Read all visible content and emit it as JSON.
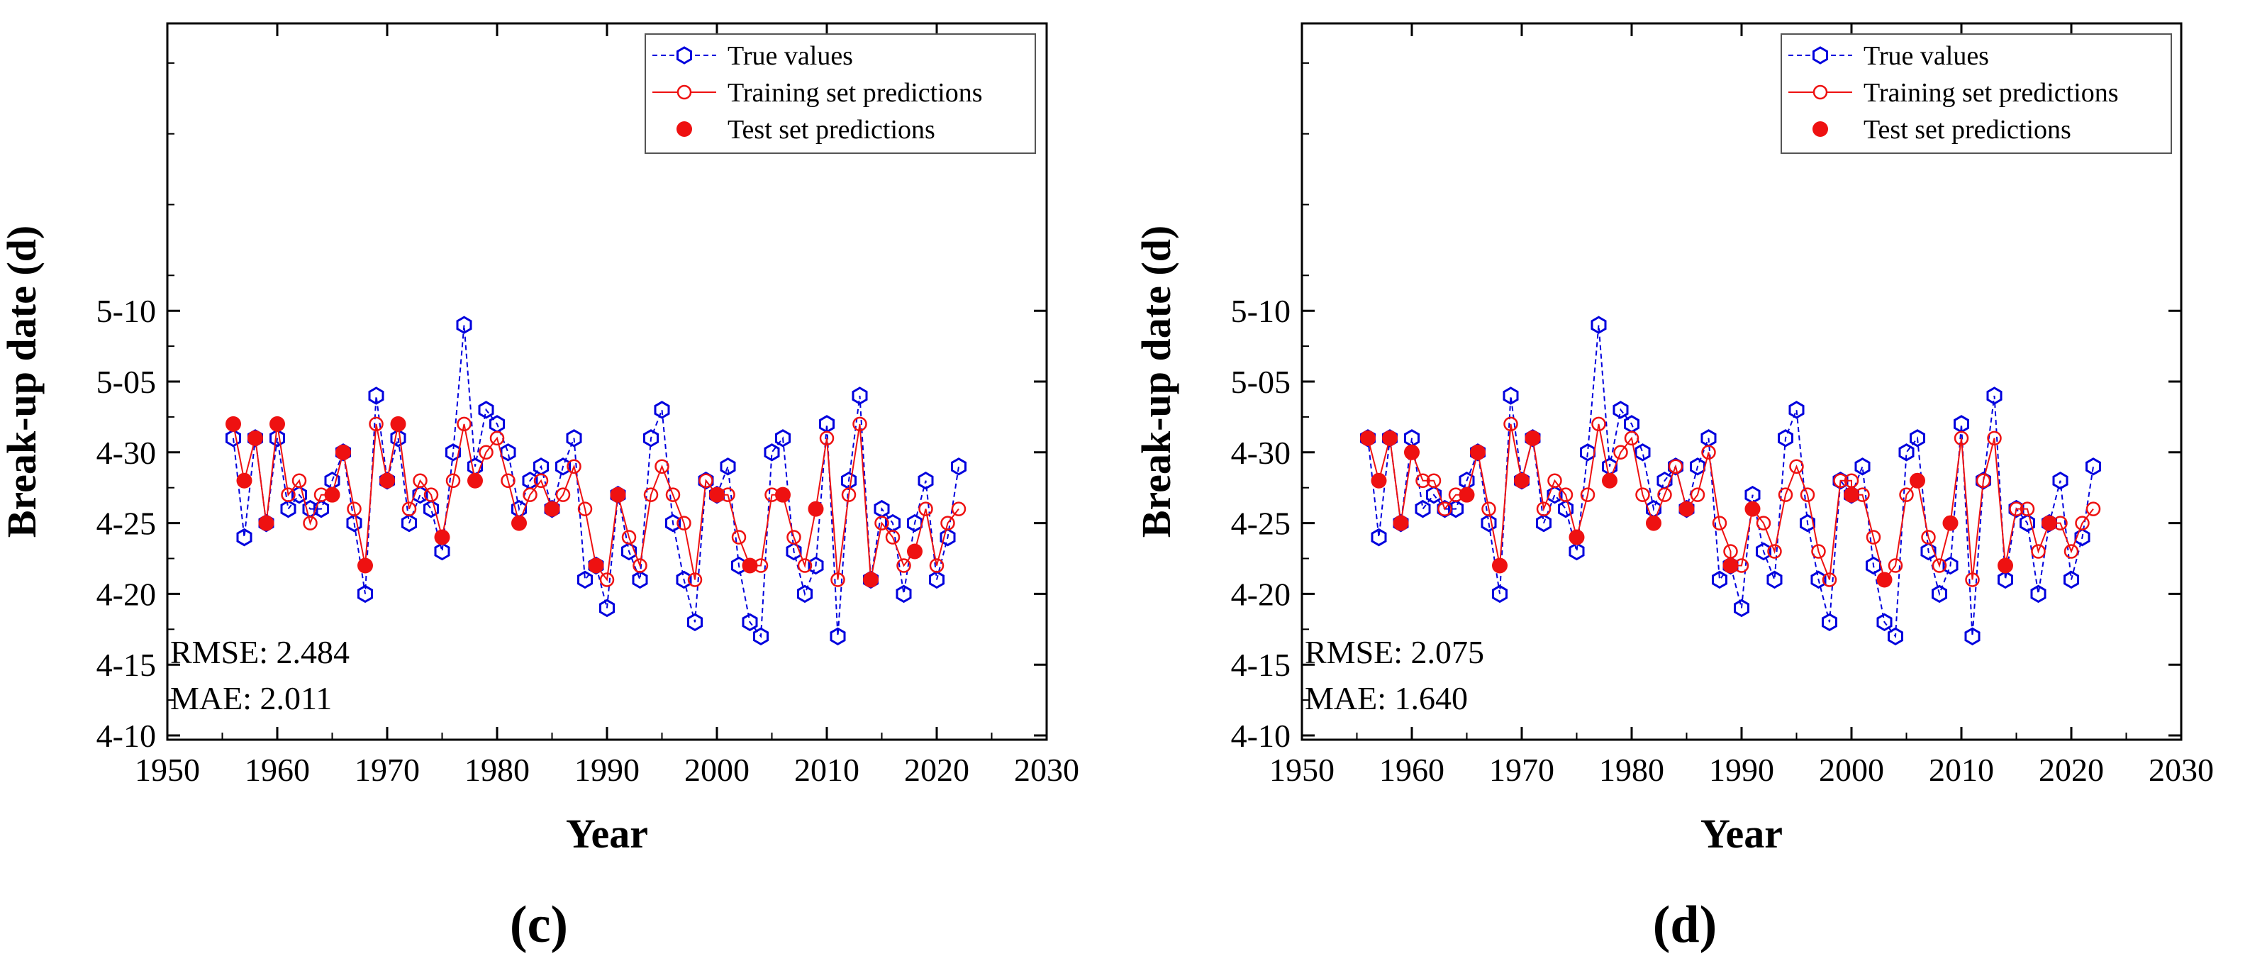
{
  "colors": {
    "true": "#0000dd",
    "train": "#ee1111",
    "test": "#ee1111",
    "axis": "#000000"
  },
  "chart_data": [
    {
      "type": "line",
      "panel": "(c)",
      "xlabel": "Year",
      "ylabel": "Break-up date (d)",
      "xlim": [
        1950,
        2030
      ],
      "ylim": [
        -20,
        30
      ],
      "x_ticks": [
        1950,
        1960,
        1970,
        1980,
        1990,
        2000,
        2010,
        2020,
        2030
      ],
      "y_ticks": [
        {
          "value": -20,
          "label": "4-10"
        },
        {
          "value": -15,
          "label": "4-15"
        },
        {
          "value": -10,
          "label": "4-20"
        },
        {
          "value": -5,
          "label": "4-25"
        },
        {
          "value": 0,
          "label": "4-30"
        },
        {
          "value": 5,
          "label": "5-05"
        },
        {
          "value": 10,
          "label": "5-10"
        }
      ],
      "legend": [
        "True values",
        "Training set predictions",
        "Test set predictions"
      ],
      "legend_position": "top-right",
      "metrics": [
        "RMSE: 2.484",
        "MAE: 2.011"
      ],
      "true_values": [
        [
          1956,
          1
        ],
        [
          1957,
          -6
        ],
        [
          1958,
          1
        ],
        [
          1959,
          -5
        ],
        [
          1960,
          1
        ],
        [
          1961,
          -4
        ],
        [
          1962,
          -3
        ],
        [
          1963,
          -4
        ],
        [
          1964,
          -4
        ],
        [
          1965,
          -2
        ],
        [
          1966,
          0
        ],
        [
          1967,
          -5
        ],
        [
          1968,
          -10
        ],
        [
          1969,
          4
        ],
        [
          1970,
          -2
        ],
        [
          1971,
          1
        ],
        [
          1972,
          -5
        ],
        [
          1973,
          -3
        ],
        [
          1974,
          -4
        ],
        [
          1975,
          -7
        ],
        [
          1976,
          0
        ],
        [
          1977,
          9
        ],
        [
          1978,
          -1
        ],
        [
          1979,
          3
        ],
        [
          1980,
          2
        ],
        [
          1981,
          0
        ],
        [
          1982,
          -4
        ],
        [
          1983,
          -2
        ],
        [
          1984,
          -1
        ],
        [
          1985,
          -4
        ],
        [
          1986,
          -1
        ],
        [
          1987,
          1
        ],
        [
          1988,
          -9
        ],
        [
          1989,
          -8
        ],
        [
          1990,
          -11
        ],
        [
          1991,
          -3
        ],
        [
          1992,
          -7
        ],
        [
          1993,
          -9
        ],
        [
          1994,
          1
        ],
        [
          1995,
          3
        ],
        [
          1996,
          -5
        ],
        [
          1997,
          -9
        ],
        [
          1998,
          -12
        ],
        [
          1999,
          -2
        ],
        [
          2000,
          -3
        ],
        [
          2001,
          -1
        ],
        [
          2002,
          -8
        ],
        [
          2003,
          -12
        ],
        [
          2004,
          -13
        ],
        [
          2005,
          0
        ],
        [
          2006,
          1
        ],
        [
          2007,
          -7
        ],
        [
          2008,
          -10
        ],
        [
          2009,
          -8
        ],
        [
          2010,
          2
        ],
        [
          2011,
          -13
        ],
        [
          2012,
          -2
        ],
        [
          2013,
          4
        ],
        [
          2014,
          -9
        ],
        [
          2015,
          -4
        ],
        [
          2016,
          -5
        ],
        [
          2017,
          -10
        ],
        [
          2018,
          -5
        ],
        [
          2019,
          -2
        ],
        [
          2020,
          -9
        ],
        [
          2021,
          -6
        ],
        [
          2022,
          -1
        ]
      ],
      "train_values": [
        [
          1957,
          -2
        ],
        [
          1958,
          1
        ],
        [
          1959,
          -5
        ],
        [
          1961,
          -3
        ],
        [
          1962,
          -2
        ],
        [
          1963,
          -5
        ],
        [
          1964,
          -3
        ],
        [
          1966,
          0
        ],
        [
          1967,
          -4
        ],
        [
          1969,
          2
        ],
        [
          1970,
          -2
        ],
        [
          1972,
          -4
        ],
        [
          1973,
          -2
        ],
        [
          1974,
          -3
        ],
        [
          1976,
          -2
        ],
        [
          1977,
          2
        ],
        [
          1979,
          0
        ],
        [
          1980,
          1
        ],
        [
          1981,
          -2
        ],
        [
          1983,
          -3
        ],
        [
          1984,
          -2
        ],
        [
          1985,
          -4
        ],
        [
          1986,
          -3
        ],
        [
          1987,
          -1
        ],
        [
          1988,
          -4
        ],
        [
          1989,
          -8
        ],
        [
          1990,
          -9
        ],
        [
          1991,
          -3
        ],
        [
          1992,
          -6
        ],
        [
          1993,
          -8
        ],
        [
          1994,
          -3
        ],
        [
          1995,
          -1
        ],
        [
          1996,
          -3
        ],
        [
          1997,
          -5
        ],
        [
          1998,
          -9
        ],
        [
          1999,
          -2
        ],
        [
          2000,
          -3
        ],
        [
          2001,
          -3
        ],
        [
          2002,
          -6
        ],
        [
          2004,
          -8
        ],
        [
          2005,
          -3
        ],
        [
          2007,
          -6
        ],
        [
          2008,
          -8
        ],
        [
          2010,
          1
        ],
        [
          2011,
          -9
        ],
        [
          2012,
          -3
        ],
        [
          2013,
          2
        ],
        [
          2014,
          -9
        ],
        [
          2015,
          -5
        ],
        [
          2016,
          -6
        ],
        [
          2017,
          -8
        ],
        [
          2019,
          -4
        ],
        [
          2020,
          -8
        ],
        [
          2021,
          -5
        ],
        [
          2022,
          -4
        ]
      ],
      "test_values": [
        [
          1956,
          2
        ],
        [
          1957,
          -2
        ],
        [
          1958,
          1
        ],
        [
          1959,
          -5
        ],
        [
          1960,
          2
        ],
        [
          1965,
          -3
        ],
        [
          1966,
          0
        ],
        [
          1968,
          -8
        ],
        [
          1970,
          -2
        ],
        [
          1971,
          2
        ],
        [
          1975,
          -6
        ],
        [
          1978,
          -2
        ],
        [
          1982,
          -5
        ],
        [
          1985,
          -4
        ],
        [
          1989,
          -8
        ],
        [
          1991,
          -3
        ],
        [
          2000,
          -3
        ],
        [
          2003,
          -8
        ],
        [
          2006,
          -3
        ],
        [
          2009,
          -4
        ],
        [
          2014,
          -9
        ],
        [
          2018,
          -7
        ]
      ]
    },
    {
      "type": "line",
      "panel": "(d)",
      "xlabel": "Year",
      "ylabel": "Break-up date (d)",
      "xlim": [
        1950,
        2030
      ],
      "ylim": [
        -20,
        30
      ],
      "x_ticks": [
        1950,
        1960,
        1970,
        1980,
        1990,
        2000,
        2010,
        2020,
        2030
      ],
      "y_ticks": [
        {
          "value": -20,
          "label": "4-10"
        },
        {
          "value": -15,
          "label": "4-15"
        },
        {
          "value": -10,
          "label": "4-20"
        },
        {
          "value": -5,
          "label": "4-25"
        },
        {
          "value": 0,
          "label": "4-30"
        },
        {
          "value": 5,
          "label": "5-05"
        },
        {
          "value": 10,
          "label": "5-10"
        }
      ],
      "legend": [
        "True values",
        "Training set predictions",
        "Test set predictions"
      ],
      "legend_position": "top-right",
      "metrics": [
        "RMSE: 2.075",
        "MAE: 1.640"
      ],
      "true_values": [
        [
          1956,
          1
        ],
        [
          1957,
          -6
        ],
        [
          1958,
          1
        ],
        [
          1959,
          -5
        ],
        [
          1960,
          1
        ],
        [
          1961,
          -4
        ],
        [
          1962,
          -3
        ],
        [
          1963,
          -4
        ],
        [
          1964,
          -4
        ],
        [
          1965,
          -2
        ],
        [
          1966,
          0
        ],
        [
          1967,
          -5
        ],
        [
          1968,
          -10
        ],
        [
          1969,
          4
        ],
        [
          1970,
          -2
        ],
        [
          1971,
          1
        ],
        [
          1972,
          -5
        ],
        [
          1973,
          -3
        ],
        [
          1974,
          -4
        ],
        [
          1975,
          -7
        ],
        [
          1976,
          0
        ],
        [
          1977,
          9
        ],
        [
          1978,
          -1
        ],
        [
          1979,
          3
        ],
        [
          1980,
          2
        ],
        [
          1981,
          0
        ],
        [
          1982,
          -4
        ],
        [
          1983,
          -2
        ],
        [
          1984,
          -1
        ],
        [
          1985,
          -4
        ],
        [
          1986,
          -1
        ],
        [
          1987,
          1
        ],
        [
          1988,
          -9
        ],
        [
          1989,
          -8
        ],
        [
          1990,
          -11
        ],
        [
          1991,
          -3
        ],
        [
          1992,
          -7
        ],
        [
          1993,
          -9
        ],
        [
          1994,
          1
        ],
        [
          1995,
          3
        ],
        [
          1996,
          -5
        ],
        [
          1997,
          -9
        ],
        [
          1998,
          -12
        ],
        [
          1999,
          -2
        ],
        [
          2000,
          -3
        ],
        [
          2001,
          -1
        ],
        [
          2002,
          -8
        ],
        [
          2003,
          -12
        ],
        [
          2004,
          -13
        ],
        [
          2005,
          0
        ],
        [
          2006,
          1
        ],
        [
          2007,
          -7
        ],
        [
          2008,
          -10
        ],
        [
          2009,
          -8
        ],
        [
          2010,
          2
        ],
        [
          2011,
          -13
        ],
        [
          2012,
          -2
        ],
        [
          2013,
          4
        ],
        [
          2014,
          -9
        ],
        [
          2015,
          -4
        ],
        [
          2016,
          -5
        ],
        [
          2017,
          -10
        ],
        [
          2018,
          -5
        ],
        [
          2019,
          -2
        ],
        [
          2020,
          -9
        ],
        [
          2021,
          -6
        ],
        [
          2022,
          -1
        ]
      ],
      "train_values": [
        [
          1957,
          -2
        ],
        [
          1958,
          1
        ],
        [
          1959,
          -5
        ],
        [
          1961,
          -2
        ],
        [
          1962,
          -2
        ],
        [
          1963,
          -4
        ],
        [
          1964,
          -3
        ],
        [
          1966,
          0
        ],
        [
          1967,
          -4
        ],
        [
          1969,
          2
        ],
        [
          1970,
          -2
        ],
        [
          1972,
          -4
        ],
        [
          1973,
          -2
        ],
        [
          1974,
          -3
        ],
        [
          1976,
          -3
        ],
        [
          1977,
          2
        ],
        [
          1979,
          0
        ],
        [
          1980,
          1
        ],
        [
          1981,
          -3
        ],
        [
          1983,
          -3
        ],
        [
          1984,
          -1
        ],
        [
          1985,
          -4
        ],
        [
          1986,
          -3
        ],
        [
          1987,
          0
        ],
        [
          1988,
          -5
        ],
        [
          1989,
          -7
        ],
        [
          1990,
          -8
        ],
        [
          1991,
          -4
        ],
        [
          1992,
          -5
        ],
        [
          1993,
          -7
        ],
        [
          1994,
          -3
        ],
        [
          1995,
          -1
        ],
        [
          1996,
          -3
        ],
        [
          1997,
          -7
        ],
        [
          1998,
          -9
        ],
        [
          1999,
          -2
        ],
        [
          2000,
          -2
        ],
        [
          2001,
          -3
        ],
        [
          2002,
          -6
        ],
        [
          2004,
          -8
        ],
        [
          2005,
          -3
        ],
        [
          2007,
          -6
        ],
        [
          2008,
          -8
        ],
        [
          2010,
          1
        ],
        [
          2011,
          -9
        ],
        [
          2012,
          -2
        ],
        [
          2013,
          1
        ],
        [
          2014,
          -8
        ],
        [
          2015,
          -4
        ],
        [
          2016,
          -4
        ],
        [
          2017,
          -7
        ],
        [
          2019,
          -5
        ],
        [
          2020,
          -7
        ],
        [
          2021,
          -5
        ],
        [
          2022,
          -4
        ]
      ],
      "test_values": [
        [
          1956,
          1
        ],
        [
          1957,
          -2
        ],
        [
          1958,
          1
        ],
        [
          1959,
          -5
        ],
        [
          1960,
          0
        ],
        [
          1965,
          -3
        ],
        [
          1966,
          0
        ],
        [
          1968,
          -8
        ],
        [
          1970,
          -2
        ],
        [
          1971,
          1
        ],
        [
          1975,
          -6
        ],
        [
          1978,
          -2
        ],
        [
          1982,
          -5
        ],
        [
          1985,
          -4
        ],
        [
          1989,
          -8
        ],
        [
          1991,
          -4
        ],
        [
          2000,
          -3
        ],
        [
          2003,
          -9
        ],
        [
          2006,
          -2
        ],
        [
          2009,
          -5
        ],
        [
          2014,
          -8
        ],
        [
          2018,
          -5
        ]
      ]
    }
  ]
}
